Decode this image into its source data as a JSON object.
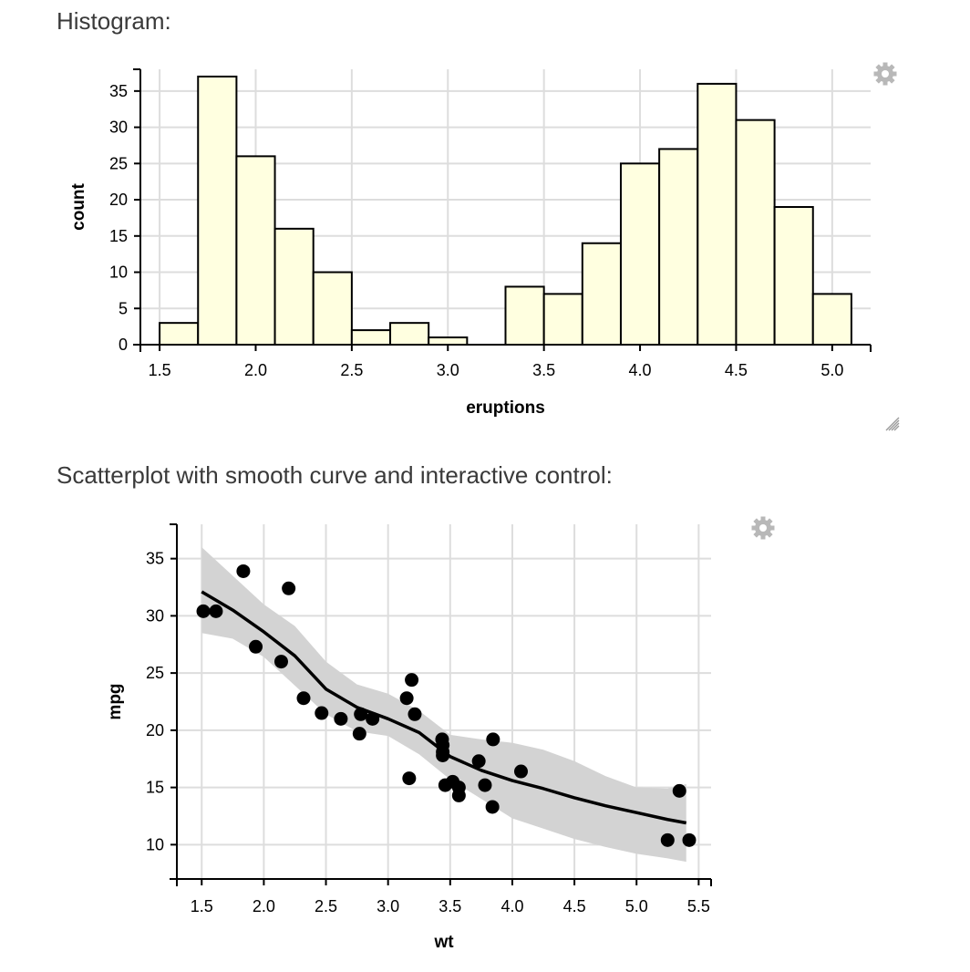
{
  "sections": {
    "histogram_title": "Histogram:",
    "scatter_title": "Scatterplot with smooth curve and interactive control:"
  },
  "icons": {
    "settings": "gear-icon",
    "resize": "resize-handle-icon"
  },
  "chart_data": [
    {
      "type": "bar",
      "title": "",
      "xlabel": "eruptions",
      "ylabel": "count",
      "xlim": [
        1.4,
        5.2
      ],
      "ylim": [
        0,
        38
      ],
      "xticks": [
        "1.5",
        "2.0",
        "2.5",
        "3.0",
        "3.5",
        "4.0",
        "4.5",
        "5.0"
      ],
      "yticks": [
        "0",
        "5",
        "10",
        "15",
        "20",
        "25",
        "30",
        "35"
      ],
      "bin_width": 0.2,
      "bins": [
        {
          "x0": 1.5,
          "x1": 1.7,
          "count": 3
        },
        {
          "x0": 1.7,
          "x1": 1.9,
          "count": 37
        },
        {
          "x0": 1.9,
          "x1": 2.1,
          "count": 26
        },
        {
          "x0": 2.1,
          "x1": 2.3,
          "count": 16
        },
        {
          "x0": 2.3,
          "x1": 2.5,
          "count": 10
        },
        {
          "x0": 2.5,
          "x1": 2.7,
          "count": 2
        },
        {
          "x0": 2.7,
          "x1": 2.9,
          "count": 3
        },
        {
          "x0": 2.9,
          "x1": 3.1,
          "count": 1
        },
        {
          "x0": 3.3,
          "x1": 3.5,
          "count": 8
        },
        {
          "x0": 3.5,
          "x1": 3.7,
          "count": 7
        },
        {
          "x0": 3.7,
          "x1": 3.9,
          "count": 14
        },
        {
          "x0": 3.9,
          "x1": 4.1,
          "count": 25
        },
        {
          "x0": 4.1,
          "x1": 4.3,
          "count": 27
        },
        {
          "x0": 4.3,
          "x1": 4.5,
          "count": 36
        },
        {
          "x0": 4.5,
          "x1": 4.7,
          "count": 31
        },
        {
          "x0": 4.7,
          "x1": 4.9,
          "count": 19
        },
        {
          "x0": 4.9,
          "x1": 5.1,
          "count": 7
        }
      ],
      "bar_color": "#ffffe0",
      "grid": true
    },
    {
      "type": "scatter",
      "title": "",
      "xlabel": "wt",
      "ylabel": "mpg",
      "xlim": [
        1.3,
        5.6
      ],
      "ylim": [
        7,
        38
      ],
      "xticks": [
        "1.5",
        "2.0",
        "2.5",
        "3.0",
        "3.5",
        "4.0",
        "4.5",
        "5.0",
        "5.5"
      ],
      "yticks": [
        "10",
        "15",
        "20",
        "25",
        "30",
        "35"
      ],
      "points": [
        [
          1.513,
          30.4
        ],
        [
          1.615,
          30.4
        ],
        [
          1.835,
          33.9
        ],
        [
          1.935,
          27.3
        ],
        [
          2.14,
          26.0
        ],
        [
          2.2,
          32.4
        ],
        [
          2.32,
          22.8
        ],
        [
          2.465,
          21.5
        ],
        [
          2.62,
          21.0
        ],
        [
          2.77,
          19.7
        ],
        [
          2.78,
          21.4
        ],
        [
          2.875,
          21.0
        ],
        [
          3.15,
          22.8
        ],
        [
          3.17,
          15.8
        ],
        [
          3.19,
          24.4
        ],
        [
          3.215,
          21.4
        ],
        [
          3.435,
          19.2
        ],
        [
          3.44,
          18.7
        ],
        [
          3.44,
          17.8
        ],
        [
          3.44,
          18.1
        ],
        [
          3.46,
          15.2
        ],
        [
          3.52,
          15.5
        ],
        [
          3.57,
          15.0
        ],
        [
          3.57,
          14.3
        ],
        [
          3.73,
          17.3
        ],
        [
          3.78,
          15.2
        ],
        [
          3.84,
          13.3
        ],
        [
          3.845,
          19.2
        ],
        [
          4.07,
          16.4
        ],
        [
          5.25,
          10.4
        ],
        [
          5.345,
          14.7
        ],
        [
          5.424,
          10.4
        ]
      ],
      "smooth": {
        "x": [
          1.5,
          1.75,
          2.0,
          2.25,
          2.5,
          2.75,
          3.0,
          3.25,
          3.5,
          3.75,
          4.0,
          4.25,
          4.5,
          4.75,
          5.0,
          5.25,
          5.4
        ],
        "y": [
          32.1,
          30.5,
          28.6,
          26.5,
          23.6,
          22.0,
          21.0,
          19.8,
          17.7,
          16.5,
          15.6,
          14.9,
          14.1,
          13.4,
          12.8,
          12.2,
          11.9
        ],
        "lower": [
          28.5,
          28.0,
          26.4,
          23.9,
          21.4,
          19.9,
          19.5,
          17.9,
          15.7,
          14.0,
          12.3,
          11.4,
          10.5,
          9.8,
          9.2,
          8.8,
          8.5
        ],
        "upper": [
          36.0,
          33.5,
          31.0,
          29.1,
          26.0,
          24.0,
          23.2,
          21.7,
          19.6,
          19.2,
          18.9,
          18.3,
          17.3,
          16.0,
          15.0,
          14.9,
          15.3
        ]
      },
      "band_color": "#d3d3d3",
      "grid": true
    }
  ]
}
